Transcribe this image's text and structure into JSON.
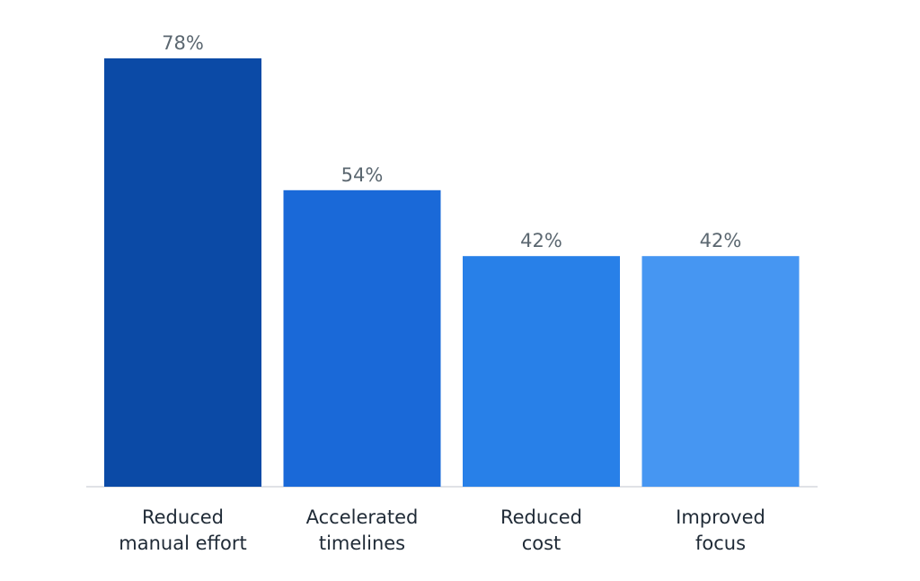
{
  "chart_data": {
    "type": "bar",
    "categories": [
      [
        "Reduced",
        "manual effort"
      ],
      [
        "Accelerated",
        "timelines"
      ],
      [
        "Reduced",
        "cost"
      ],
      [
        "Improved",
        "focus"
      ]
    ],
    "values": [
      78,
      54,
      42,
      42
    ],
    "value_labels": [
      "78%",
      "54%",
      "42%",
      "42%"
    ],
    "bar_colors": [
      "#0b4aa6",
      "#1a69d8",
      "#2880e8",
      "#4696f2"
    ],
    "ylim": [
      0,
      78
    ],
    "title": "",
    "xlabel": "",
    "ylabel": "",
    "grid": false,
    "axis_color": "#d5d9de"
  }
}
